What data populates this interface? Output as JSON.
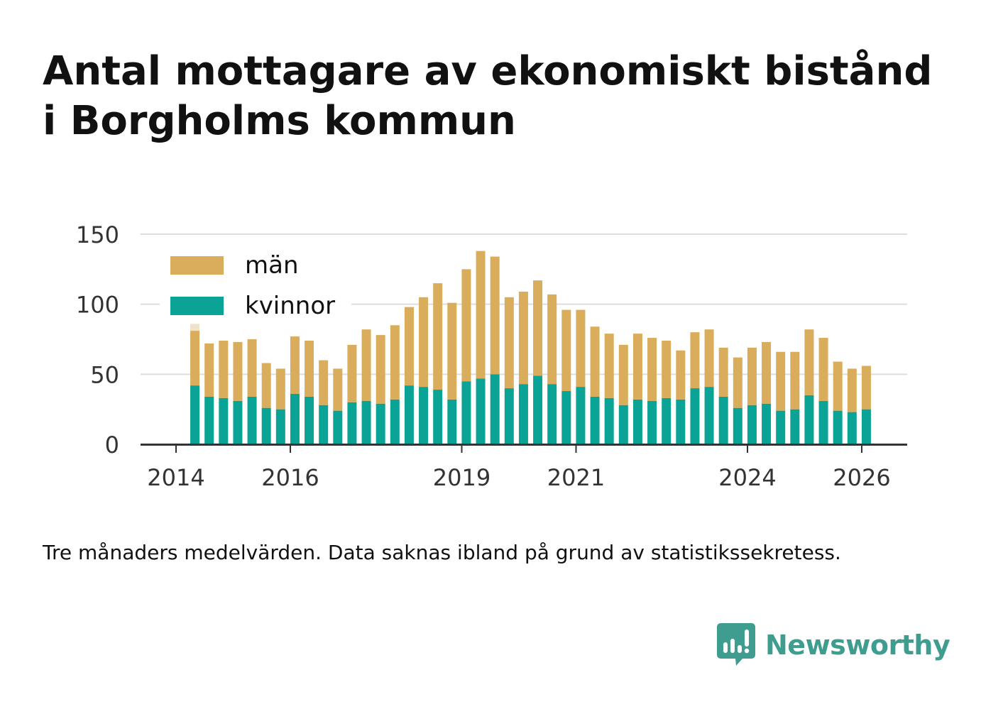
{
  "title": "Antal mottagare av ekonomiskt bistånd i Borgholms kommun",
  "note": "Tre månaders medelvärden. Data saknas ibland på grund av statistikssekretess.",
  "brand": {
    "name": "Newsworthy",
    "icon": "newsworthy-logo-icon",
    "color": "#3f9d90"
  },
  "colors": {
    "man": "#d9ad5b",
    "kvinnor": "#0aa396",
    "gridline": "#dddddd",
    "axis": "#333333",
    "ghost": "#efe3cc"
  },
  "chart_data": {
    "type": "bar",
    "stacked": true,
    "title": "Antal mottagare av ekonomiskt bistånd i Borgholms kommun",
    "ylim": [
      0,
      150
    ],
    "yticks": [
      0,
      50,
      100,
      150
    ],
    "xlim": [
      2014,
      2026.5
    ],
    "xticks": [
      2014,
      2016,
      2019,
      2021,
      2024,
      2026
    ],
    "legend": {
      "placement": "top-left",
      "entries": [
        "män",
        "kvinnor"
      ]
    },
    "ghost": {
      "x": 2014.33,
      "value": 86
    },
    "x": [
      2014.33,
      2014.58,
      2014.83,
      2015.08,
      2015.33,
      2015.58,
      2015.83,
      2016.08,
      2016.33,
      2016.58,
      2016.83,
      2017.08,
      2017.33,
      2017.58,
      2017.83,
      2018.08,
      2018.33,
      2018.58,
      2018.83,
      2019.08,
      2019.33,
      2019.58,
      2019.83,
      2020.08,
      2020.33,
      2020.58,
      2020.83,
      2021.08,
      2021.33,
      2021.58,
      2021.83,
      2022.08,
      2022.33,
      2022.58,
      2022.83,
      2023.08,
      2023.33,
      2023.58,
      2023.83,
      2024.08,
      2024.33,
      2024.58,
      2024.83,
      2025.08,
      2025.33,
      2025.58,
      2025.83,
      2026.08
    ],
    "series": [
      {
        "name": "kvinnor",
        "values": [
          42,
          34,
          33,
          31,
          34,
          26,
          25,
          36,
          34,
          28,
          24,
          30,
          31,
          29,
          32,
          42,
          41,
          39,
          32,
          45,
          47,
          50,
          40,
          43,
          49,
          43,
          38,
          41,
          34,
          33,
          28,
          32,
          31,
          33,
          32,
          40,
          41,
          34,
          26,
          28,
          29,
          24,
          25,
          35,
          31,
          24,
          23,
          25
        ]
      },
      {
        "name": "män",
        "values": [
          39,
          38,
          41,
          42,
          41,
          32,
          29,
          41,
          40,
          32,
          30,
          41,
          51,
          49,
          53,
          56,
          64,
          76,
          69,
          80,
          91,
          84,
          65,
          66,
          68,
          64,
          58,
          55,
          50,
          46,
          43,
          47,
          45,
          41,
          35,
          40,
          41,
          35,
          36,
          41,
          44,
          42,
          41,
          47,
          45,
          35,
          31,
          31
        ]
      }
    ]
  }
}
